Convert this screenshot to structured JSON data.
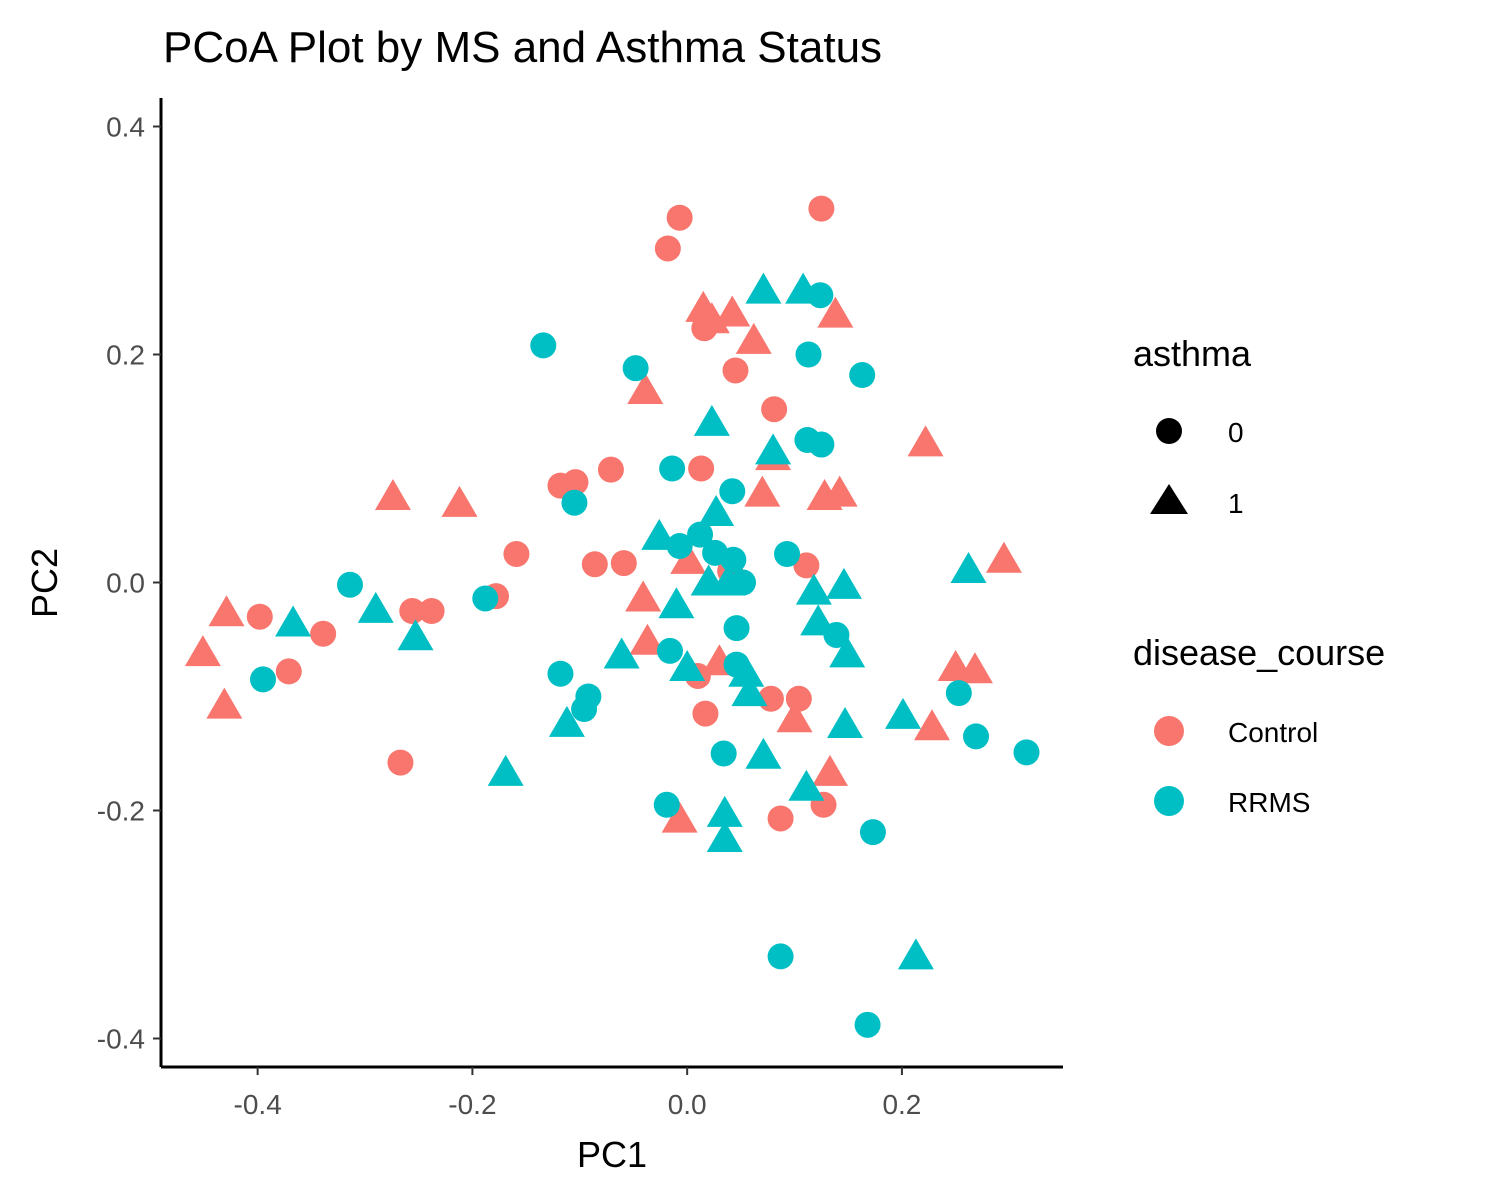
{
  "chart_data": {
    "type": "scatter",
    "title": "PCoA Plot by MS and Asthma Status",
    "xlabel": "PC1",
    "ylabel": "PC2",
    "xlim": [
      -0.49,
      0.35
    ],
    "ylim": [
      -0.425,
      0.425
    ],
    "x_ticks": [
      {
        "value": -0.4,
        "label": "-0.4"
      },
      {
        "value": -0.2,
        "label": "-0.2"
      },
      {
        "value": 0.0,
        "label": "0.0"
      },
      {
        "value": 0.2,
        "label": "0.2"
      }
    ],
    "y_ticks": [
      {
        "value": 0.4,
        "label": "0.4"
      },
      {
        "value": 0.2,
        "label": "0.2"
      },
      {
        "value": 0.0,
        "label": "0.0"
      },
      {
        "value": -0.2,
        "label": "-0.2"
      },
      {
        "value": -0.4,
        "label": "-0.4"
      }
    ],
    "grid": false,
    "legend_position": "right",
    "colors": {
      "Control": "#F8766D",
      "RRMS": "#00BFC4"
    },
    "legends": [
      {
        "title": "asthma",
        "type": "shape",
        "entries": [
          {
            "label": "0",
            "shape": "circle"
          },
          {
            "label": "1",
            "shape": "triangle"
          }
        ]
      },
      {
        "title": "disease_course",
        "type": "color",
        "entries": [
          {
            "label": "Control",
            "color": "#F8766D"
          },
          {
            "label": "RRMS",
            "color": "#00BFC4"
          }
        ]
      }
    ],
    "series": [
      {
        "name": "Control",
        "asthma": "0",
        "points": [
          [
            -0.398,
            -0.03
          ],
          [
            -0.371,
            -0.078
          ],
          [
            -0.339,
            -0.045
          ],
          [
            -0.256,
            -0.025
          ],
          [
            -0.238,
            -0.025
          ],
          [
            -0.178,
            -0.012
          ],
          [
            -0.159,
            0.025
          ],
          [
            -0.267,
            -0.158
          ],
          [
            -0.118,
            0.085
          ],
          [
            -0.104,
            0.088
          ],
          [
            -0.071,
            0.099
          ],
          [
            -0.086,
            0.016
          ],
          [
            -0.059,
            0.017
          ],
          [
            -0.018,
            0.293
          ],
          [
            -0.007,
            0.32
          ],
          [
            0.016,
            0.223
          ],
          [
            0.045,
            0.186
          ],
          [
            0.081,
            0.152
          ],
          [
            0.013,
            0.1
          ],
          [
            0.04,
            0.01
          ],
          [
            0.111,
            0.015
          ],
          [
            0.125,
            0.328
          ],
          [
            0.01,
            -0.082
          ],
          [
            0.017,
            -0.115
          ],
          [
            0.078,
            -0.102
          ],
          [
            0.104,
            -0.102
          ],
          [
            0.087,
            -0.207
          ],
          [
            0.127,
            -0.195
          ]
        ]
      },
      {
        "name": "Control",
        "asthma": "1",
        "points": [
          [
            -0.451,
            -0.062
          ],
          [
            -0.429,
            -0.027
          ],
          [
            -0.431,
            -0.108
          ],
          [
            -0.274,
            0.075
          ],
          [
            -0.212,
            0.069
          ],
          [
            -0.039,
            0.168
          ],
          [
            -0.041,
            -0.014
          ],
          [
            -0.037,
            -0.052
          ],
          [
            0.001,
            0.019
          ],
          [
            0.015,
            0.24
          ],
          [
            0.023,
            0.23
          ],
          [
            0.042,
            0.236
          ],
          [
            0.062,
            0.212
          ],
          [
            0.07,
            0.078
          ],
          [
            0.08,
            0.11
          ],
          [
            0.128,
            0.075
          ],
          [
            0.142,
            0.078
          ],
          [
            0.138,
            0.235
          ],
          [
            0.222,
            0.122
          ],
          [
            0.295,
            0.02
          ],
          [
            0.25,
            -0.075
          ],
          [
            0.268,
            -0.077
          ],
          [
            0.228,
            -0.127
          ],
          [
            0.1,
            -0.12
          ],
          [
            0.133,
            -0.167
          ],
          [
            -0.007,
            -0.208
          ],
          [
            0.03,
            -0.07
          ]
        ]
      },
      {
        "name": "RRMS",
        "asthma": "0",
        "points": [
          [
            -0.395,
            -0.085
          ],
          [
            -0.314,
            -0.002
          ],
          [
            -0.188,
            -0.014
          ],
          [
            -0.134,
            0.208
          ],
          [
            -0.118,
            -0.08
          ],
          [
            -0.105,
            0.07
          ],
          [
            -0.092,
            -0.1
          ],
          [
            -0.096,
            -0.111
          ],
          [
            -0.048,
            0.188
          ],
          [
            -0.014,
            0.1
          ],
          [
            -0.016,
            -0.06
          ],
          [
            -0.007,
            0.032
          ],
          [
            -0.019,
            -0.195
          ],
          [
            0.012,
            0.042
          ],
          [
            0.026,
            0.026
          ],
          [
            0.043,
            0.02
          ],
          [
            0.042,
            0.08
          ],
          [
            0.052,
            0.0
          ],
          [
            0.046,
            -0.04
          ],
          [
            0.046,
            -0.072
          ],
          [
            0.034,
            -0.15
          ],
          [
            0.093,
            0.025
          ],
          [
            0.113,
            0.2
          ],
          [
            0.112,
            0.125
          ],
          [
            0.125,
            0.121
          ],
          [
            0.124,
            0.252
          ],
          [
            0.163,
            0.182
          ],
          [
            0.139,
            -0.046
          ],
          [
            0.253,
            -0.097
          ],
          [
            0.269,
            -0.135
          ],
          [
            0.316,
            -0.149
          ],
          [
            0.173,
            -0.219
          ],
          [
            0.087,
            -0.328
          ],
          [
            0.168,
            -0.388
          ]
        ]
      },
      {
        "name": "RRMS",
        "asthma": "1",
        "points": [
          [
            -0.367,
            -0.036
          ],
          [
            -0.29,
            -0.024
          ],
          [
            -0.253,
            -0.048
          ],
          [
            -0.169,
            -0.167
          ],
          [
            -0.112,
            -0.124
          ],
          [
            -0.061,
            -0.064
          ],
          [
            -0.026,
            0.04
          ],
          [
            -0.01,
            -0.02
          ],
          [
            0.0,
            -0.075
          ],
          [
            0.023,
            0.14
          ],
          [
            0.027,
            0.061
          ],
          [
            0.02,
            0.0
          ],
          [
            0.038,
            0.0
          ],
          [
            0.055,
            -0.08
          ],
          [
            0.058,
            -0.097
          ],
          [
            0.071,
            -0.152
          ],
          [
            0.08,
            0.115
          ],
          [
            0.071,
            0.256
          ],
          [
            0.108,
            0.256
          ],
          [
            0.118,
            -0.008
          ],
          [
            0.122,
            -0.035
          ],
          [
            0.146,
            -0.003
          ],
          [
            0.149,
            -0.063
          ],
          [
            0.147,
            -0.125
          ],
          [
            0.201,
            -0.117
          ],
          [
            0.213,
            -0.328
          ],
          [
            0.111,
            -0.18
          ],
          [
            0.035,
            -0.203
          ],
          [
            0.035,
            -0.225
          ],
          [
            0.262,
            0.011
          ]
        ]
      }
    ]
  }
}
